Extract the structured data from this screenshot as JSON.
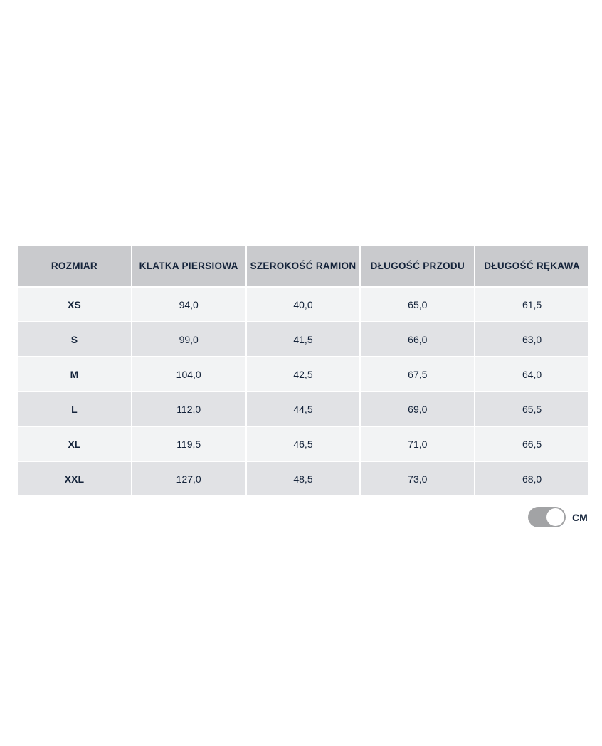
{
  "table": {
    "headers": [
      "ROZMIAR",
      "KLATKA PIERSIOWA",
      "SZEROKOŚĆ RAMION",
      "DŁUGOŚĆ PRZODU",
      "DŁUGOŚĆ RĘKAWA"
    ],
    "rows": [
      [
        "XS",
        "94,0",
        "40,0",
        "65,0",
        "61,5"
      ],
      [
        "S",
        "99,0",
        "41,5",
        "66,0",
        "63,0"
      ],
      [
        "M",
        "104,0",
        "42,5",
        "67,5",
        "64,0"
      ],
      [
        "L",
        "112,0",
        "44,5",
        "69,0",
        "65,5"
      ],
      [
        "XL",
        "119,5",
        "46,5",
        "71,0",
        "66,5"
      ],
      [
        "XXL",
        "127,0",
        "48,5",
        "73,0",
        "68,0"
      ]
    ]
  },
  "unit_toggle": {
    "label": "CM",
    "on": true,
    "color": "#a2a3a5"
  }
}
